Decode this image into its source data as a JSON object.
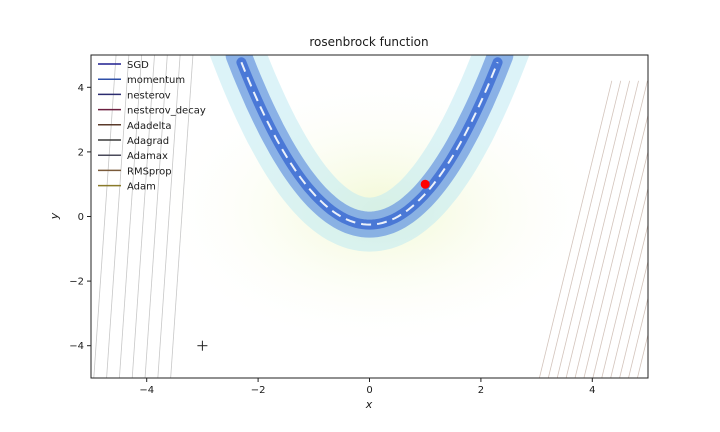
{
  "chart_data": {
    "type": "line",
    "title": "rosenbrock function",
    "xlabel": "x",
    "ylabel": "y",
    "xlim": [
      -5,
      5
    ],
    "ylim": [
      -5,
      5
    ],
    "xticks": [
      -4,
      -2,
      0,
      2,
      4
    ],
    "yticks": [
      -4,
      -2,
      0,
      2,
      4
    ],
    "xtick_labels": [
      "−4",
      "−2",
      "0",
      "2",
      "4"
    ],
    "ytick_labels": [
      "−4",
      "−2",
      "0",
      "2",
      "4"
    ],
    "legend_position": "top-left",
    "minimum_marker": {
      "x": 1,
      "y": 1,
      "color": "#ff0000"
    },
    "start_marker": {
      "x": -3,
      "y": -4
    },
    "series": [
      {
        "name": "SGD",
        "color": "#1f1f8f"
      },
      {
        "name": "momentum",
        "color": "#2f4fa8"
      },
      {
        "name": "nesterov",
        "color": "#2b2b6f"
      },
      {
        "name": "nesterov_decay",
        "color": "#6b1f3f"
      },
      {
        "name": "Adadelta",
        "color": "#5a3a2a"
      },
      {
        "name": "Adagrad",
        "color": "#3a3a3a"
      },
      {
        "name": "Adamax",
        "color": "#4a4a5a"
      },
      {
        "name": "RMSprop",
        "color": "#7a5a3a"
      },
      {
        "name": "Adam",
        "color": "#8a7a2a"
      }
    ]
  }
}
